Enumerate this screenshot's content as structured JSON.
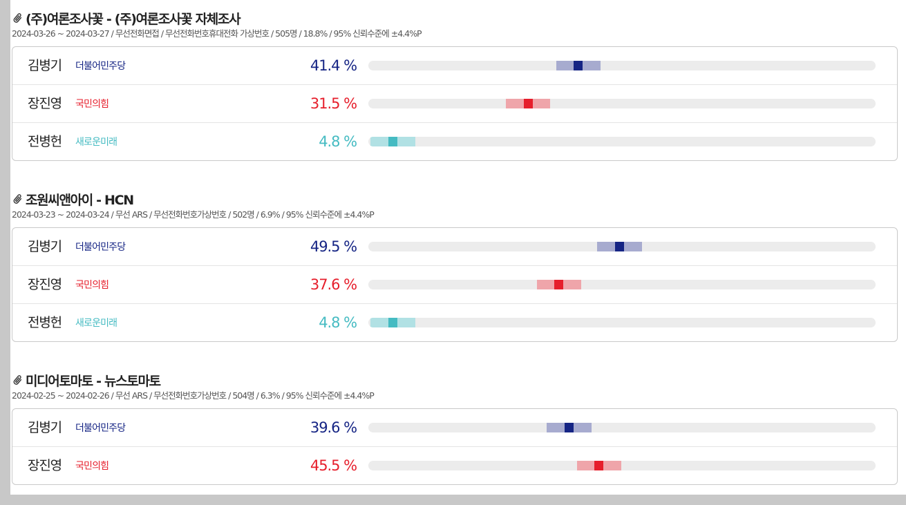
{
  "colors": {
    "더불어민주당": {
      "text": "#152484",
      "range": "#a7abcf",
      "point": "#152484"
    },
    "국민의힘": {
      "text": "#e61e2b",
      "range": "#efa5aa",
      "point": "#e61e2b"
    },
    "새로운미래": {
      "text": "#45bbc2",
      "range": "#b1e1e4",
      "point": "#45bbc2"
    }
  },
  "polls": [
    {
      "title": "(주)여론조사꽃 - (주)여론조사꽃 자체조사",
      "meta": "2024-03-26 ~ 2024-03-27 / 무선전화면접 / 무선전화번호휴대전화 가상번호 / 505명 / 18.8% / 95% 신뢰수준에 ±4.4%P",
      "margin": 4.4,
      "results": [
        {
          "candidate": "김병기",
          "party": "더불어민주당",
          "percent": 41.4,
          "label": "41.4 %"
        },
        {
          "candidate": "장진영",
          "party": "국민의힘",
          "percent": 31.5,
          "label": "31.5 %"
        },
        {
          "candidate": "전병헌",
          "party": "새로운미래",
          "percent": 4.8,
          "label": "4.8 %"
        }
      ]
    },
    {
      "title": "조원씨앤아이 - HCN",
      "meta": "2024-03-23 ~ 2024-03-24 / 무선 ARS / 무선전화번호가상번호 / 502명 / 6.9% / 95% 신뢰수준에 ±4.4%P",
      "margin": 4.4,
      "results": [
        {
          "candidate": "김병기",
          "party": "더불어민주당",
          "percent": 49.5,
          "label": "49.5 %"
        },
        {
          "candidate": "장진영",
          "party": "국민의힘",
          "percent": 37.6,
          "label": "37.6 %"
        },
        {
          "candidate": "전병헌",
          "party": "새로운미래",
          "percent": 4.8,
          "label": "4.8 %"
        }
      ]
    },
    {
      "title": "미디어토마토 - 뉴스토마토",
      "meta": "2024-02-25 ~ 2024-02-26 / 무선 ARS / 무선전화번호가상번호 / 504명 / 6.3% / 95% 신뢰수준에 ±4.4%P",
      "margin": 4.4,
      "results": [
        {
          "candidate": "김병기",
          "party": "더불어민주당",
          "percent": 39.6,
          "label": "39.6 %"
        },
        {
          "candidate": "장진영",
          "party": "국민의힘",
          "percent": 45.5,
          "label": "45.5 %"
        }
      ]
    }
  ]
}
